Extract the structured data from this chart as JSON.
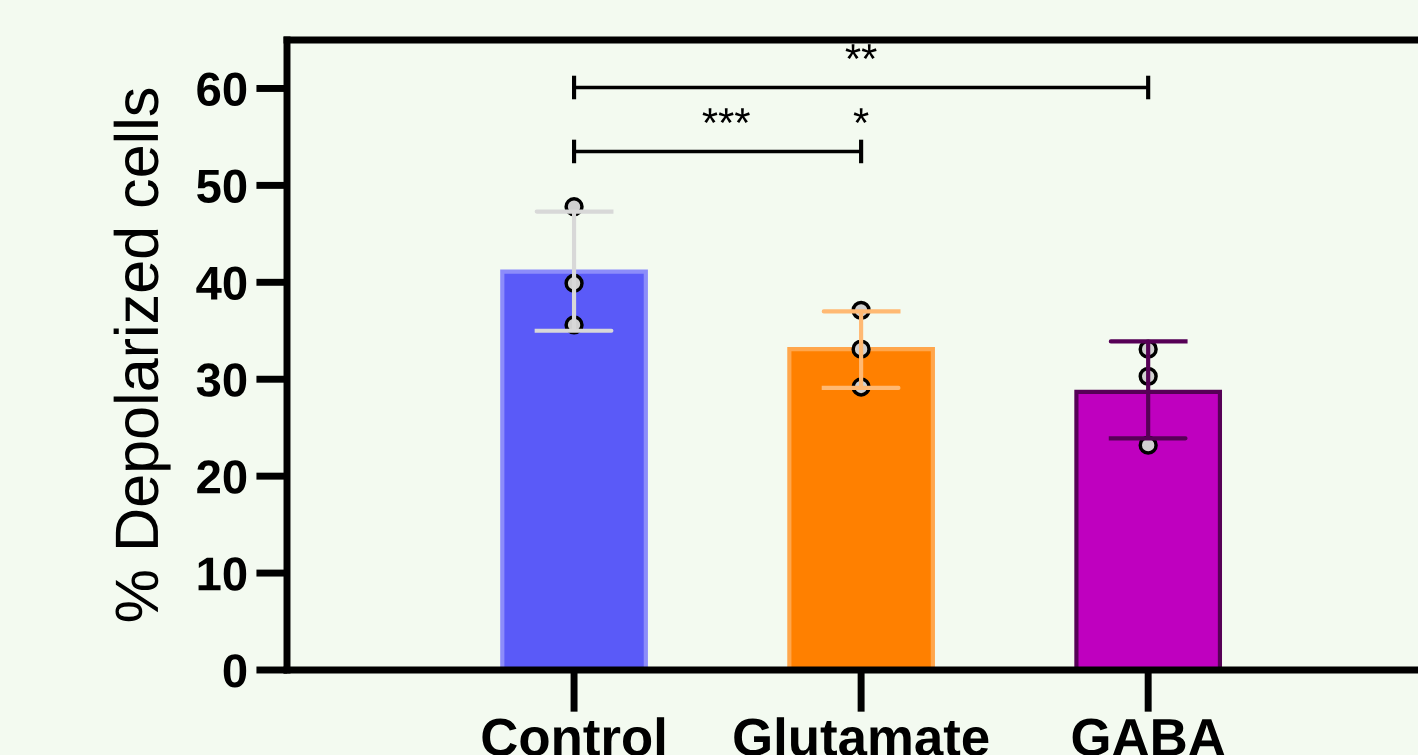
{
  "chart_data": {
    "type": "bar",
    "ylabel": "% Depolarized cells",
    "categories": [
      "Control",
      "Glutamate",
      "GABA"
    ],
    "series": [
      {
        "colors": [
          "#5a5af8",
          "#ff8000",
          "#bf00bf"
        ],
        "values": [
          41.1,
          33.1,
          28.7
        ],
        "errors": [
          [
            35.0,
            47.3
          ],
          [
            29.1,
            37.0
          ],
          [
            23.9,
            33.9
          ]
        ]
      },
      {
        "type": "scatter",
        "color": "#d0d0d0",
        "x": [
          "Control",
          "Control",
          "Control",
          "Glutamate",
          "Glutamate",
          "Glutamate",
          "GABA",
          "GABA",
          "GABA"
        ],
        "values": [
          47.8,
          39.9,
          35.6,
          37.1,
          33.1,
          29.2,
          33.1,
          30.3,
          23.2
        ]
      }
    ],
    "ylim": [
      0,
      65
    ],
    "yticks": [
      0,
      10,
      20,
      30,
      40,
      50,
      60
    ],
    "grid": false,
    "legend": false,
    "marker": "circle",
    "annotations": [
      "**",
      "***",
      "*"
    ]
  }
}
